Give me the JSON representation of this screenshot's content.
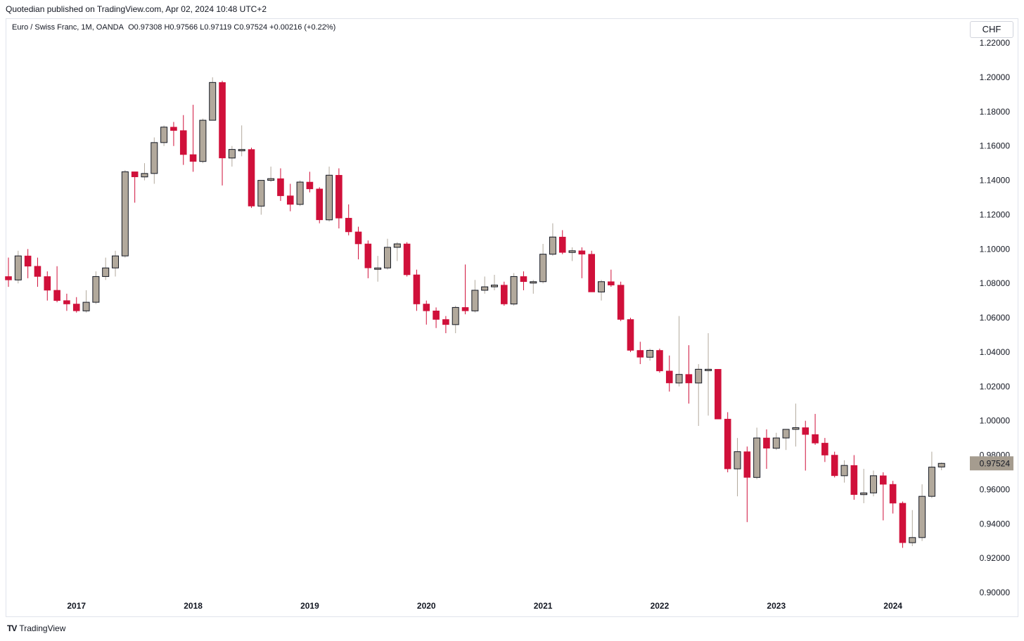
{
  "header": {
    "published_by": "Quotedian published on TradingView.com, Apr 02, 2024 10:48 UTC+2"
  },
  "legend": {
    "symbol": "Euro / Swiss Franc, 1M, OANDA",
    "open": "O0.97308",
    "high": "H0.97566",
    "low": "L0.97119",
    "close": "C0.97524",
    "change": "+0.00216 (+0.22%)"
  },
  "currency_label": "CHF",
  "last_price_label": "0.97524",
  "footer": {
    "brand": "TradingView",
    "logo_glyph": "TV"
  },
  "colors": {
    "up": "#b2a99c",
    "down": "#d0103a",
    "outline": "#131722",
    "last_price_bg": "#a59c8f"
  },
  "chart_data": {
    "type": "candlestick",
    "title": "Euro / Swiss Franc, 1M, OANDA",
    "x_ticks": [
      "2017",
      "2018",
      "2019",
      "2020",
      "2021",
      "2022",
      "2023",
      "2024"
    ],
    "y_ticks": [
      "0.90000",
      "0.92000",
      "0.94000",
      "0.96000",
      "0.98000",
      "1.00000",
      "1.02000",
      "1.04000",
      "1.06000",
      "1.08000",
      "1.10000",
      "1.12000",
      "1.14000",
      "1.16000",
      "1.18000",
      "1.20000",
      "1.22000"
    ],
    "ylim": [
      0.9,
      1.22
    ],
    "x_start": "2016-06",
    "grid": false,
    "candles": [
      [
        1.084,
        1.095,
        1.078,
        1.082
      ],
      [
        1.082,
        1.099,
        1.08,
        1.096
      ],
      [
        1.096,
        1.1,
        1.083,
        1.09
      ],
      [
        1.09,
        1.095,
        1.078,
        1.084
      ],
      [
        1.084,
        1.087,
        1.07,
        1.076
      ],
      [
        1.076,
        1.09,
        1.069,
        1.07
      ],
      [
        1.07,
        1.074,
        1.064,
        1.068
      ],
      [
        1.068,
        1.072,
        1.063,
        1.064
      ],
      [
        1.064,
        1.076,
        1.063,
        1.069
      ],
      [
        1.069,
        1.087,
        1.068,
        1.084
      ],
      [
        1.084,
        1.095,
        1.082,
        1.089
      ],
      [
        1.089,
        1.099,
        1.084,
        1.096
      ],
      [
        1.096,
        1.146,
        1.095,
        1.145
      ],
      [
        1.145,
        1.145,
        1.127,
        1.142
      ],
      [
        1.142,
        1.15,
        1.14,
        1.144
      ],
      [
        1.144,
        1.165,
        1.138,
        1.162
      ],
      [
        1.162,
        1.172,
        1.16,
        1.171
      ],
      [
        1.171,
        1.174,
        1.16,
        1.169
      ],
      [
        1.169,
        1.178,
        1.149,
        1.155
      ],
      [
        1.155,
        1.184,
        1.145,
        1.151
      ],
      [
        1.151,
        1.176,
        1.15,
        1.175
      ],
      [
        1.175,
        1.2,
        1.175,
        1.197
      ],
      [
        1.197,
        1.198,
        1.137,
        1.153
      ],
      [
        1.153,
        1.16,
        1.148,
        1.158
      ],
      [
        1.158,
        1.172,
        1.154,
        1.158
      ],
      [
        1.158,
        1.159,
        1.124,
        1.125
      ],
      [
        1.125,
        1.14,
        1.12,
        1.14
      ],
      [
        1.14,
        1.148,
        1.139,
        1.141
      ],
      [
        1.141,
        1.147,
        1.128,
        1.131
      ],
      [
        1.131,
        1.138,
        1.122,
        1.126
      ],
      [
        1.126,
        1.14,
        1.125,
        1.139
      ],
      [
        1.139,
        1.145,
        1.133,
        1.135
      ],
      [
        1.135,
        1.136,
        1.115,
        1.117
      ],
      [
        1.117,
        1.148,
        1.116,
        1.143
      ],
      [
        1.143,
        1.147,
        1.112,
        1.118
      ],
      [
        1.118,
        1.126,
        1.108,
        1.11
      ],
      [
        1.11,
        1.113,
        1.094,
        1.103
      ],
      [
        1.103,
        1.105,
        1.083,
        1.089
      ],
      [
        1.089,
        1.096,
        1.081,
        1.089
      ],
      [
        1.089,
        1.106,
        1.088,
        1.101
      ],
      [
        1.101,
        1.104,
        1.093,
        1.103
      ],
      [
        1.103,
        1.104,
        1.084,
        1.085
      ],
      [
        1.085,
        1.088,
        1.064,
        1.068
      ],
      [
        1.068,
        1.07,
        1.056,
        1.064
      ],
      [
        1.064,
        1.066,
        1.054,
        1.059
      ],
      [
        1.059,
        1.061,
        1.051,
        1.056
      ],
      [
        1.056,
        1.067,
        1.051,
        1.066
      ],
      [
        1.066,
        1.091,
        1.062,
        1.064
      ],
      [
        1.064,
        1.082,
        1.063,
        1.076
      ],
      [
        1.076,
        1.084,
        1.074,
        1.078
      ],
      [
        1.078,
        1.085,
        1.076,
        1.079
      ],
      [
        1.079,
        1.081,
        1.067,
        1.068
      ],
      [
        1.068,
        1.086,
        1.067,
        1.084
      ],
      [
        1.084,
        1.087,
        1.076,
        1.081
      ],
      [
        1.081,
        1.082,
        1.074,
        1.081
      ],
      [
        1.081,
        1.103,
        1.08,
        1.097
      ],
      [
        1.097,
        1.115,
        1.096,
        1.107
      ],
      [
        1.107,
        1.111,
        1.097,
        1.098
      ],
      [
        1.098,
        1.101,
        1.093,
        1.099
      ],
      [
        1.099,
        1.101,
        1.083,
        1.097
      ],
      [
        1.097,
        1.099,
        1.075,
        1.075
      ],
      [
        1.075,
        1.082,
        1.07,
        1.081
      ],
      [
        1.081,
        1.088,
        1.078,
        1.079
      ],
      [
        1.079,
        1.081,
        1.058,
        1.059
      ],
      [
        1.059,
        1.06,
        1.04,
        1.041
      ],
      [
        1.041,
        1.046,
        1.033,
        1.037
      ],
      [
        1.037,
        1.042,
        1.035,
        1.041
      ],
      [
        1.041,
        1.042,
        1.028,
        1.029
      ],
      [
        1.029,
        1.038,
        1.017,
        1.022
      ],
      [
        1.022,
        1.061,
        1.02,
        1.027
      ],
      [
        1.027,
        1.044,
        1.01,
        1.022
      ],
      [
        1.022,
        1.033,
        0.997,
        1.03
      ],
      [
        1.03,
        1.051,
        1.003,
        1.03
      ],
      [
        1.03,
        1.03,
        1.002,
        1.001
      ],
      [
        1.001,
        1.005,
        0.97,
        0.972
      ],
      [
        0.972,
        0.99,
        0.956,
        0.982
      ],
      [
        0.982,
        0.985,
        0.941,
        0.967
      ],
      [
        0.967,
        0.996,
        0.966,
        0.99
      ],
      [
        0.99,
        0.995,
        0.972,
        0.984
      ],
      [
        0.984,
        0.993,
        0.983,
        0.99
      ],
      [
        0.99,
        0.994,
        0.983,
        0.995
      ],
      [
        0.995,
        1.01,
        0.985,
        0.996
      ],
      [
        0.996,
        1.0,
        0.971,
        0.992
      ],
      [
        0.992,
        1.004,
        0.986,
        0.987
      ],
      [
        0.987,
        0.99,
        0.976,
        0.98
      ],
      [
        0.98,
        0.982,
        0.967,
        0.968
      ],
      [
        0.968,
        0.977,
        0.964,
        0.974
      ],
      [
        0.974,
        0.98,
        0.954,
        0.957
      ],
      [
        0.957,
        0.972,
        0.952,
        0.958
      ],
      [
        0.958,
        0.971,
        0.956,
        0.968
      ],
      [
        0.968,
        0.97,
        0.942,
        0.963
      ],
      [
        0.963,
        0.965,
        0.946,
        0.952
      ],
      [
        0.952,
        0.953,
        0.926,
        0.929
      ],
      [
        0.929,
        0.948,
        0.927,
        0.932
      ],
      [
        0.932,
        0.963,
        0.93,
        0.956
      ],
      [
        0.956,
        0.982,
        0.955,
        0.973
      ],
      [
        0.9731,
        0.9757,
        0.9712,
        0.9752
      ]
    ]
  }
}
